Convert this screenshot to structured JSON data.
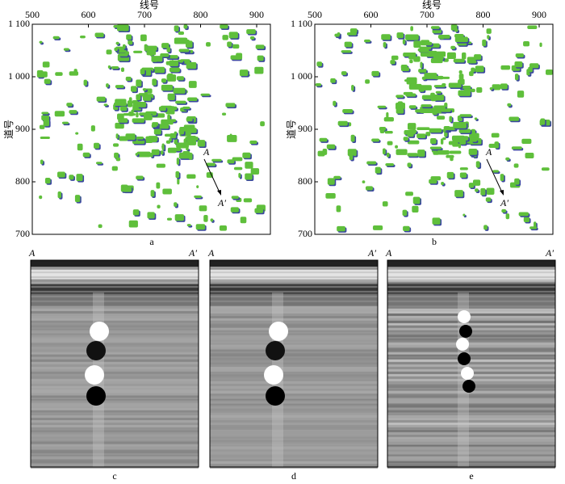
{
  "panels": [
    {
      "label": "a",
      "x_axis_title": "线号",
      "y_axis_title": "道号",
      "x_ticks": [
        "500",
        "600",
        "700",
        "800",
        "900"
      ],
      "y_ticks": [
        "1 100",
        "1 000",
        "900",
        "800",
        "700"
      ],
      "annotations": [
        "A",
        "A′"
      ]
    },
    {
      "label": "b",
      "x_axis_title": "线号",
      "y_axis_title": "道号",
      "x_ticks": [
        "500",
        "600",
        "700",
        "800",
        "900"
      ],
      "y_ticks": [
        "1 100",
        "1 000",
        "900",
        "800",
        "700"
      ],
      "annotations": [
        "A",
        "A′"
      ]
    }
  ],
  "sections": [
    {
      "label": "c",
      "left": "A",
      "right": "A′"
    },
    {
      "label": "d",
      "left": "A",
      "right": "A′"
    },
    {
      "label": "e",
      "left": "A",
      "right": "A′"
    }
  ]
}
